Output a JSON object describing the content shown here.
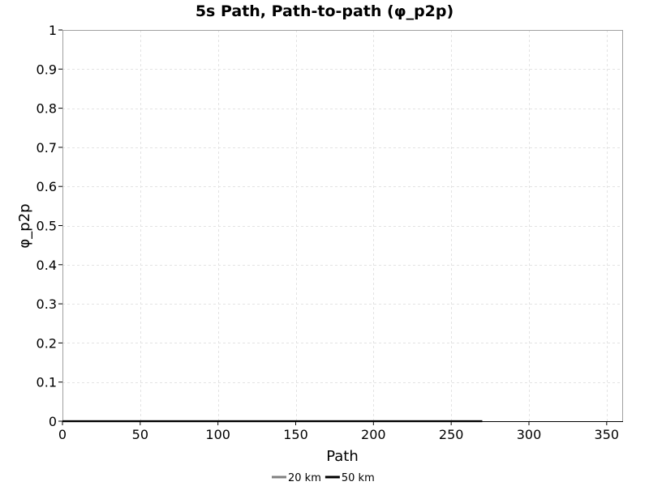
{
  "chart_data": {
    "type": "line",
    "title": "5s Path, Path-to-path (φ_p2p)",
    "xlabel": "Path",
    "ylabel": "φ_p2p",
    "xlim": [
      0,
      360
    ],
    "ylim": [
      0,
      1
    ],
    "x_ticks": [
      "0",
      "50",
      "100",
      "150",
      "200",
      "250",
      "300",
      "350"
    ],
    "x_tick_values": [
      0,
      50,
      100,
      150,
      200,
      250,
      300,
      350
    ],
    "y_ticks": [
      "0",
      "0.1",
      "0.2",
      "0.3",
      "0.4",
      "0.5",
      "0.6",
      "0.7",
      "0.8",
      "0.9",
      "1"
    ],
    "y_tick_values": [
      0,
      0.1,
      0.2,
      0.3,
      0.4,
      0.5,
      0.6,
      0.7,
      0.8,
      0.9,
      1
    ],
    "grid": true,
    "legend_position": "bottom",
    "series": [
      {
        "name": "20 km",
        "color": "#808080",
        "x": [
          0,
          270
        ],
        "y": [
          0,
          0
        ]
      },
      {
        "name": "50 km",
        "color": "#000000",
        "x": [
          0,
          270
        ],
        "y": [
          0,
          0
        ]
      }
    ]
  }
}
